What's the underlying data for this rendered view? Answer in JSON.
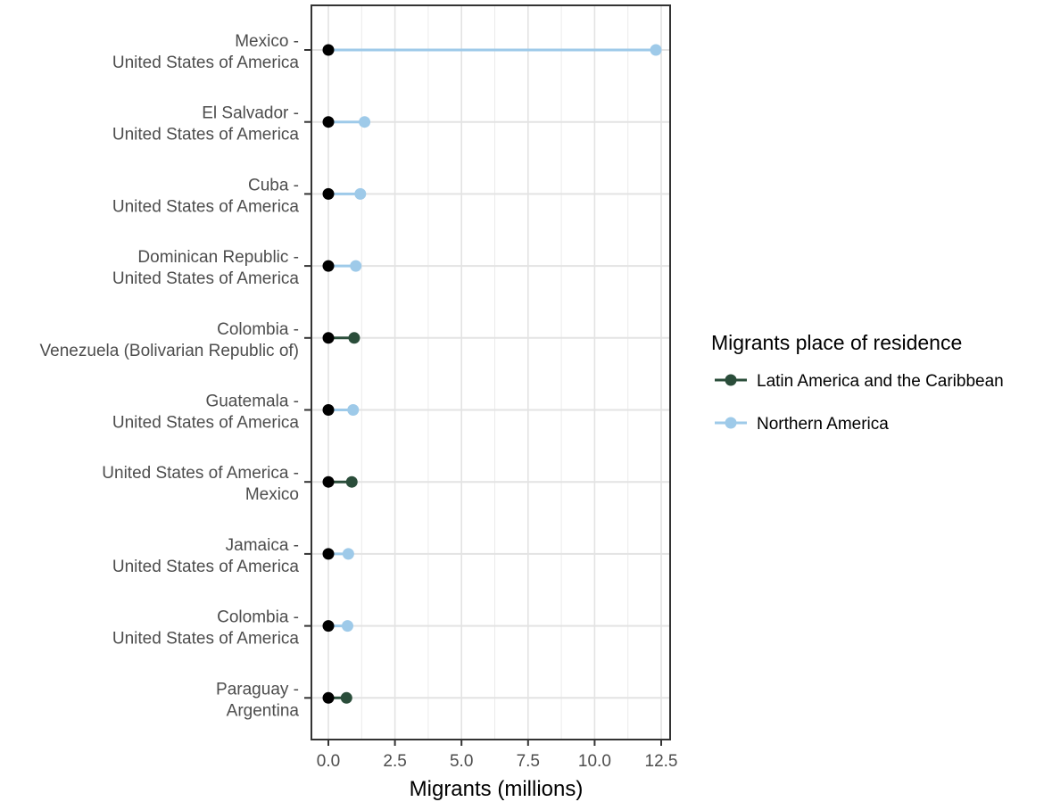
{
  "chart_data": {
    "type": "dumbbell",
    "xlabel": "Migrants (millions)",
    "ylabel": "",
    "xlim": [
      -0.6,
      12.9
    ],
    "xticks": [
      "0.0",
      "2.5",
      "5.0",
      "7.5",
      "10.0",
      "12.5"
    ],
    "xtick_values": [
      0,
      2.5,
      5,
      7.5,
      10,
      12.5
    ],
    "grid": true,
    "legend": {
      "title": "Migrants place of residence",
      "placement": "right",
      "entries": [
        {
          "name": "Latin America and the Caribbean",
          "color": "#2a4d3a"
        },
        {
          "name": "Northern America",
          "color": "#9ecae9"
        }
      ]
    },
    "start_point_color": "#000000",
    "categories": [
      {
        "line1": "Mexico -",
        "line2": "United States of America",
        "value": 12.3,
        "group": "Northern America"
      },
      {
        "line1": "El Salvador -",
        "line2": "United States of America",
        "value": 1.36,
        "group": "Northern America"
      },
      {
        "line1": "Cuba -",
        "line2": "United States of America",
        "value": 1.2,
        "group": "Northern America"
      },
      {
        "line1": "Dominican Republic -",
        "line2": "United States of America",
        "value": 1.03,
        "group": "Northern America"
      },
      {
        "line1": "Colombia -",
        "line2": "Venezuela (Bolivarian Republic of)",
        "value": 0.97,
        "group": "Latin America and the Caribbean"
      },
      {
        "line1": "Guatemala -",
        "line2": "United States of America",
        "value": 0.93,
        "group": "Northern America"
      },
      {
        "line1": "United States of America -",
        "line2": "Mexico",
        "value": 0.88,
        "group": "Latin America and the Caribbean"
      },
      {
        "line1": "Jamaica -",
        "line2": "United States of America",
        "value": 0.75,
        "group": "Northern America"
      },
      {
        "line1": "Colombia -",
        "line2": "United States of America",
        "value": 0.72,
        "group": "Northern America"
      },
      {
        "line1": "Paraguay -",
        "line2": "Argentina",
        "value": 0.68,
        "group": "Latin America and the Caribbean"
      }
    ],
    "start_value": 0
  }
}
